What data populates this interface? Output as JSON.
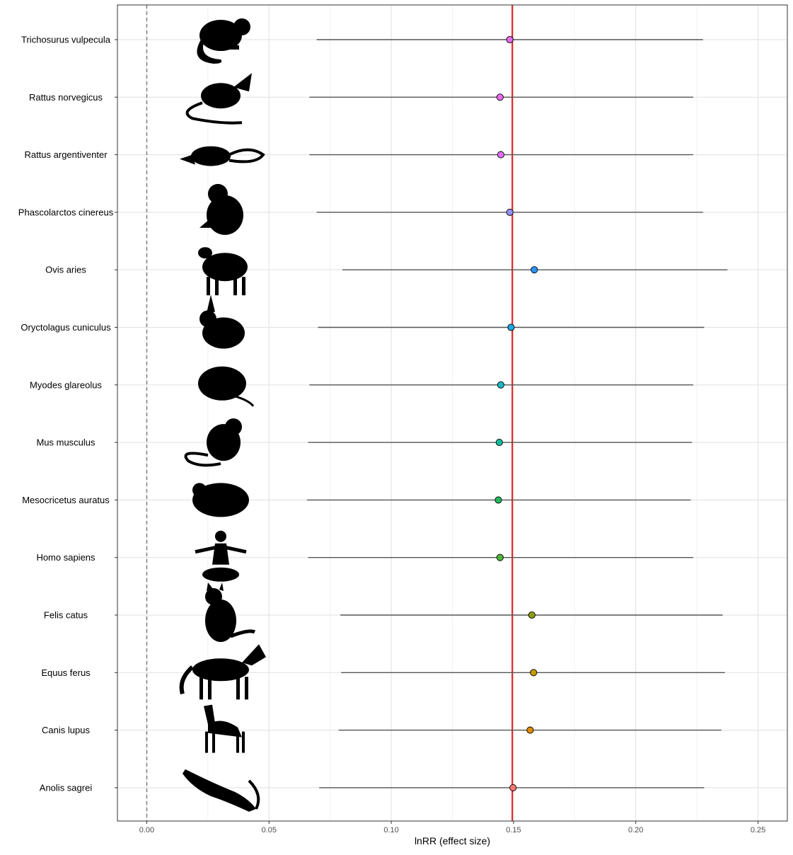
{
  "chart_data": {
    "type": "scatter",
    "subtype": "forest-plot",
    "xlabel": "lnRR (effect size)",
    "xlim": [
      -0.012,
      0.262
    ],
    "x_ticks": [
      0.0,
      0.05,
      0.1,
      0.15,
      0.2,
      0.25
    ],
    "x_tick_labels": [
      "0.00",
      "0.05",
      "0.10",
      "0.15",
      "0.20",
      "0.25"
    ],
    "reference_line_dashed": 0.0,
    "reference_line_solid": 0.1495,
    "grid": true,
    "legend": "none",
    "categories": [
      "Trichosurus vulpecula",
      "Rattus norvegicus",
      "Rattus argentiventer",
      "Phascolarctos cinereus",
      "Ovis aries",
      "Oryctolagus cuniculus",
      "Myodes glareolus",
      "Mus musculus",
      "Mesocricetus auratus",
      "Homo sapiens",
      "Felis catus",
      "Equus ferus",
      "Canis lupus",
      "Anolis sagrei"
    ],
    "estimates": [
      0.1485,
      0.1445,
      0.1448,
      0.1485,
      0.1585,
      0.149,
      0.1448,
      0.1442,
      0.1438,
      0.1445,
      0.1575,
      0.1582,
      0.1568,
      0.1498
    ],
    "lower": [
      0.0695,
      0.0665,
      0.0665,
      0.0695,
      0.08,
      0.07,
      0.0665,
      0.066,
      0.0655,
      0.066,
      0.0792,
      0.0795,
      0.0785,
      0.0705
    ],
    "upper": [
      0.2275,
      0.2235,
      0.2235,
      0.2275,
      0.2375,
      0.228,
      0.2235,
      0.223,
      0.2225,
      0.2235,
      0.2355,
      0.2365,
      0.235,
      0.228
    ],
    "point_colors": [
      "#E76BF3",
      "#EC69EF",
      "#E26FF6",
      "#9590FF",
      "#2B94FF",
      "#1EA7E6",
      "#1AB9C0",
      "#12BE9A",
      "#22B85F",
      "#4EB63A",
      "#8C9F11",
      "#C49A00",
      "#DE8C00",
      "#F8766D"
    ],
    "silhouette_icons": [
      "possum-silhouette-icon",
      "rat-silhouette-icon",
      "ricefield-rat-silhouette-icon",
      "koala-silhouette-icon",
      "sheep-silhouette-icon",
      "rabbit-silhouette-icon",
      "vole-silhouette-icon",
      "mouse-silhouette-icon",
      "hamster-silhouette-icon",
      "human-silhouette-icon",
      "cat-silhouette-icon",
      "horse-silhouette-icon",
      "dog-silhouette-icon",
      "lizard-silhouette-icon"
    ],
    "colors": {
      "reference_solid": "#E31A1C",
      "reference_dashed": "#7F7F7F",
      "interval": "#555555",
      "grid_major": "#E5E5E5",
      "grid_minor": "#F2F2F2",
      "panel_border": "#333333"
    }
  }
}
